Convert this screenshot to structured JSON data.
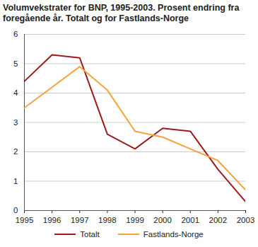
{
  "chart_data": {
    "type": "line",
    "title": "Volumvekstrater for BNP, 1995-2003. Prosent endring fra foregående år. Totalt og for Fastlands-Norge",
    "x": [
      1995,
      1996,
      1997,
      1998,
      1999,
      2000,
      2001,
      2002,
      2003
    ],
    "series": [
      {
        "name": "Totalt",
        "color": "#9e1b1b",
        "values": [
          4.4,
          5.3,
          5.2,
          2.6,
          2.1,
          2.8,
          2.7,
          1.4,
          0.3
        ]
      },
      {
        "name": "Fastlands-Norge",
        "color": "#f5a23f",
        "values": [
          3.5,
          4.2,
          4.9,
          4.1,
          2.7,
          2.5,
          2.1,
          1.7,
          0.7
        ]
      }
    ],
    "xlim": [
      1995,
      2003
    ],
    "xticks": [
      1995,
      1996,
      1997,
      1998,
      1999,
      2000,
      2001,
      2002,
      2003
    ],
    "ylim": [
      0,
      6
    ],
    "yticks": [
      0,
      1,
      2,
      3,
      4,
      5,
      6
    ],
    "grid": true,
    "legend": "bottom"
  }
}
